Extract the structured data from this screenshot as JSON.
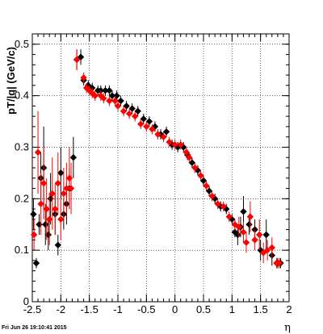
{
  "chart_data": {
    "type": "scatter",
    "title": "",
    "xlabel": "η",
    "ylabel": "pT/|q| (GeV/c)",
    "xlim": [
      -2.5,
      2.0
    ],
    "ylim": [
      0,
      0.52
    ],
    "x_ticks": [
      "-2.5",
      "-2",
      "-1.5",
      "-1",
      "-0.5",
      "0",
      "0.5",
      "1",
      "1.5",
      "2"
    ],
    "y_ticks": [
      "0",
      "0.1",
      "0.2",
      "0.3",
      "0.4",
      "0.5"
    ],
    "grid": true,
    "timestamp": "Fri Jun 26 19:10:41 2015",
    "series": [
      {
        "color": "#000000",
        "marker": "diamond",
        "points": [
          [
            -2.48,
            0.17,
            0.03
          ],
          [
            -2.43,
            0.075,
            0.01
          ],
          [
            -2.38,
            0.15,
            0.02
          ],
          [
            -2.35,
            0.24,
            0.05
          ],
          [
            -2.3,
            0.26,
            0.08
          ],
          [
            -2.27,
            0.15,
            0.04
          ],
          [
            -2.22,
            0.13,
            0.03
          ],
          [
            -2.18,
            0.2,
            0.05
          ],
          [
            -2.1,
            0.17,
            0.04
          ],
          [
            -2.05,
            0.11,
            0.02
          ],
          [
            -2.0,
            0.25,
            0.05
          ],
          [
            -1.95,
            0.17,
            0.03
          ],
          [
            -1.9,
            0.19,
            0.04
          ],
          [
            -1.85,
            0.22,
            0.04
          ],
          [
            -1.78,
            0.28,
            0.04
          ],
          [
            -1.72,
            0.47,
            0.02
          ],
          [
            -1.65,
            0.475,
            0.015
          ],
          [
            -1.6,
            0.43,
            0.01
          ],
          [
            -1.52,
            0.42,
            0.01
          ],
          [
            -1.45,
            0.415,
            0.01
          ],
          [
            -1.35,
            0.41,
            0.01
          ],
          [
            -1.3,
            0.41,
            0.01
          ],
          [
            -1.22,
            0.41,
            0.01
          ],
          [
            -1.15,
            0.41,
            0.01
          ],
          [
            -1.1,
            0.4,
            0.01
          ],
          [
            -1.02,
            0.4,
            0.01
          ],
          [
            -0.95,
            0.39,
            0.01
          ],
          [
            -0.85,
            0.38,
            0.01
          ],
          [
            -0.75,
            0.375,
            0.01
          ],
          [
            -0.65,
            0.37,
            0.01
          ],
          [
            -0.55,
            0.355,
            0.01
          ],
          [
            -0.45,
            0.35,
            0.01
          ],
          [
            -0.35,
            0.34,
            0.01
          ],
          [
            -0.25,
            0.325,
            0.01
          ],
          [
            -0.15,
            0.33,
            0.01
          ],
          [
            -0.05,
            0.305,
            0.01
          ],
          [
            0.05,
            0.3,
            0.01
          ],
          [
            0.15,
            0.3,
            0.01
          ],
          [
            0.22,
            0.285,
            0.01
          ],
          [
            0.3,
            0.27,
            0.01
          ],
          [
            0.4,
            0.255,
            0.01
          ],
          [
            0.5,
            0.235,
            0.01
          ],
          [
            0.6,
            0.215,
            0.01
          ],
          [
            0.7,
            0.2,
            0.01
          ],
          [
            0.8,
            0.185,
            0.01
          ],
          [
            0.9,
            0.18,
            0.01
          ],
          [
            1.0,
            0.16,
            0.01
          ],
          [
            1.05,
            0.135,
            0.01
          ],
          [
            1.1,
            0.13,
            0.02
          ],
          [
            1.15,
            0.145,
            0.02
          ],
          [
            1.2,
            0.175,
            0.03
          ],
          [
            1.3,
            0.15,
            0.02
          ],
          [
            1.4,
            0.14,
            0.02
          ],
          [
            1.5,
            0.1,
            0.02
          ],
          [
            1.6,
            0.13,
            0.03
          ],
          [
            1.7,
            0.09,
            0.02
          ],
          [
            1.8,
            0.075,
            0.01
          ],
          [
            1.85,
            0.075,
            0.01
          ]
        ]
      },
      {
        "color": "#ff0000",
        "marker": "diamond",
        "points": [
          [
            -2.47,
            0.13,
            0.03
          ],
          [
            -2.4,
            0.29,
            0.08
          ],
          [
            -2.35,
            0.19,
            0.06
          ],
          [
            -2.3,
            0.23,
            0.07
          ],
          [
            -2.25,
            0.18,
            0.06
          ],
          [
            -2.2,
            0.16,
            0.05
          ],
          [
            -2.15,
            0.21,
            0.07
          ],
          [
            -2.1,
            0.18,
            0.05
          ],
          [
            -2.05,
            0.23,
            0.06
          ],
          [
            -2.0,
            0.16,
            0.04
          ],
          [
            -1.95,
            0.21,
            0.05
          ],
          [
            -1.9,
            0.22,
            0.05
          ],
          [
            -1.85,
            0.24,
            0.06
          ],
          [
            -1.82,
            0.22,
            0.05
          ],
          [
            -1.72,
            0.47,
            0.02
          ],
          [
            -1.6,
            0.435,
            0.01
          ],
          [
            -1.55,
            0.415,
            0.01
          ],
          [
            -1.5,
            0.41,
            0.01
          ],
          [
            -1.45,
            0.405,
            0.01
          ],
          [
            -1.4,
            0.4,
            0.01
          ],
          [
            -1.3,
            0.4,
            0.01
          ],
          [
            -1.25,
            0.395,
            0.01
          ],
          [
            -1.15,
            0.39,
            0.01
          ],
          [
            -1.05,
            0.39,
            0.01
          ],
          [
            -1.0,
            0.38,
            0.01
          ],
          [
            -0.9,
            0.37,
            0.01
          ],
          [
            -0.8,
            0.365,
            0.01
          ],
          [
            -0.7,
            0.36,
            0.01
          ],
          [
            -0.6,
            0.345,
            0.01
          ],
          [
            -0.5,
            0.34,
            0.01
          ],
          [
            -0.4,
            0.335,
            0.01
          ],
          [
            -0.3,
            0.325,
            0.01
          ],
          [
            -0.2,
            0.32,
            0.01
          ],
          [
            -0.1,
            0.31,
            0.01
          ],
          [
            0.0,
            0.305,
            0.01
          ],
          [
            0.1,
            0.305,
            0.01
          ],
          [
            0.2,
            0.29,
            0.01
          ],
          [
            0.25,
            0.28,
            0.01
          ],
          [
            0.35,
            0.26,
            0.01
          ],
          [
            0.45,
            0.245,
            0.01
          ],
          [
            0.55,
            0.225,
            0.01
          ],
          [
            0.65,
            0.205,
            0.01
          ],
          [
            0.75,
            0.19,
            0.01
          ],
          [
            0.85,
            0.185,
            0.01
          ],
          [
            0.95,
            0.165,
            0.01
          ],
          [
            1.05,
            0.15,
            0.01
          ],
          [
            1.12,
            0.145,
            0.02
          ],
          [
            1.2,
            0.135,
            0.02
          ],
          [
            1.25,
            0.115,
            0.02
          ],
          [
            1.32,
            0.165,
            0.03
          ],
          [
            1.4,
            0.12,
            0.02
          ],
          [
            1.48,
            0.13,
            0.03
          ],
          [
            1.55,
            0.095,
            0.02
          ],
          [
            1.62,
            0.1,
            0.02
          ],
          [
            1.7,
            0.105,
            0.02
          ],
          [
            1.78,
            0.075,
            0.01
          ],
          [
            1.83,
            0.075,
            0.01
          ]
        ]
      }
    ]
  }
}
